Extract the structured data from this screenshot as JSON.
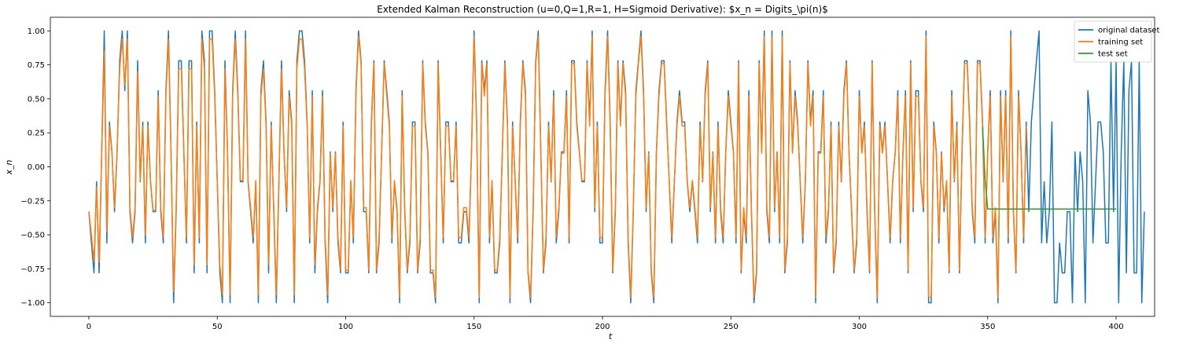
{
  "chart_data": {
    "type": "line",
    "title": "Extended Kalman Reconstruction (u=0,Q=1,R=1, H=Sigmoid Derivative): $x_n = Digits_\\pi(n)$",
    "xlabel": "t",
    "ylabel": "x_n",
    "xlim": [
      -15,
      415
    ],
    "ylim": [
      -1.1,
      1.1
    ],
    "xticks": [
      0,
      50,
      100,
      150,
      200,
      250,
      300,
      350,
      400
    ],
    "yticks": [
      -1.0,
      -0.75,
      -0.5,
      -0.25,
      0.0,
      0.25,
      0.5,
      0.75,
      1.0
    ],
    "ytick_labels": [
      "−1.00",
      "−0.75",
      "−0.50",
      "−0.25",
      "0.00",
      "0.25",
      "0.50",
      "0.75",
      "1.00"
    ],
    "legend_position": "top-right",
    "grid": false,
    "series": [
      {
        "name": "original dataset",
        "color": "#1f77b4",
        "x_start": 0,
        "y": [
          -0.33,
          -0.56,
          -0.78,
          -0.11,
          -0.78,
          0.11,
          1.0,
          -0.56,
          0.33,
          0.11,
          -0.33,
          0.11,
          0.78,
          1.0,
          0.56,
          1.0,
          -0.33,
          -0.56,
          -0.33,
          0.78,
          -0.11,
          0.33,
          -0.56,
          0.33,
          -0.11,
          -0.33,
          -0.33,
          0.56,
          -0.33,
          -0.56,
          0.56,
          1.0,
          0.11,
          -1.0,
          -0.33,
          0.78,
          0.78,
          0.11,
          -0.56,
          0.78,
          0.78,
          -0.78,
          0.33,
          -0.56,
          1.0,
          0.78,
          -0.78,
          1.0,
          1.0,
          0.56,
          -0.11,
          -0.78,
          -1.0,
          0.78,
          0.11,
          -1.0,
          0.56,
          1.0,
          0.56,
          -0.11,
          -0.11,
          1.0,
          -0.11,
          -0.33,
          -0.56,
          -0.11,
          -1.0,
          0.56,
          0.78,
          0.33,
          -0.78,
          0.33,
          -0.33,
          -1.0,
          -0.11,
          0.78,
          0.11,
          -0.33,
          0.56,
          0.33,
          -1.0,
          0.78,
          1.0,
          1.0,
          0.78,
          0.33,
          -0.56,
          0.56,
          -0.78,
          -0.33,
          -0.11,
          0.56,
          -0.56,
          -1.0,
          0.11,
          -0.33,
          0.11,
          -0.56,
          -0.78,
          0.33,
          -0.78,
          -0.78,
          -0.11,
          -0.56,
          0.56,
          1.0,
          0.78,
          -0.33,
          -0.33,
          -0.78,
          0.33,
          0.78,
          -0.78,
          -0.56,
          0.11,
          0.78,
          0.56,
          0.33,
          -0.56,
          -0.11,
          -0.33,
          -1.0,
          0.56,
          -0.33,
          -0.78,
          -0.56,
          0.33,
          0.33,
          -0.78,
          -0.56,
          0.78,
          0.33,
          0.11,
          -0.78,
          -0.78,
          -1.0,
          0.78,
          0.11,
          -0.56,
          0.33,
          0.33,
          -0.11,
          -0.11,
          0.33,
          -0.56,
          -0.56,
          -0.33,
          -0.33,
          -0.56,
          0.11,
          1.0,
          0.33,
          -1.0,
          0.78,
          0.56,
          0.78,
          -0.56,
          -0.11,
          -0.78,
          -0.78,
          -0.56,
          0.11,
          0.78,
          0.33,
          -1.0,
          0.33,
          -0.11,
          -0.56,
          0.33,
          0.78,
          0.56,
          -0.78,
          -1.0,
          -0.33,
          0.78,
          1.0,
          0.11,
          -0.78,
          -0.56,
          0.33,
          -0.11,
          0.56,
          -0.56,
          -0.33,
          0.11,
          0.11,
          0.56,
          -0.56,
          0.78,
          0.78,
          0.33,
          0.11,
          -0.11,
          -0.11,
          0.78,
          0.33,
          1.0,
          -0.33,
          0.33,
          -0.56,
          -0.56,
          0.56,
          1.0,
          0.33,
          -0.78,
          -0.33,
          0.78,
          0.33,
          0.78,
          0.56,
          -0.56,
          -1.0,
          -0.33,
          0.56,
          0.78,
          1.0,
          0.56,
          -0.33,
          0.11,
          -0.78,
          -1.0,
          0.11,
          0.56,
          0.78,
          0.78,
          0.33,
          -0.11,
          -0.56,
          -0.11,
          0.33,
          0.56,
          0.33,
          0.33,
          -0.11,
          -0.33,
          -0.11,
          -0.33,
          -0.56,
          0.33,
          -0.11,
          0.56,
          0.78,
          -0.33,
          0.11,
          -0.56,
          0.33,
          -0.33,
          -0.56,
          0.11,
          0.56,
          0.33,
          0.11,
          -0.56,
          0.78,
          -0.78,
          -0.33,
          -0.56,
          0.56,
          -0.33,
          -1.0,
          -0.78,
          0.78,
          0.11,
          1.0,
          -0.33,
          -0.56,
          1.0,
          -0.33,
          0.11,
          -0.56,
          1.0,
          -0.78,
          -0.56,
          0.78,
          0.11,
          0.56,
          0.33,
          -0.11,
          -0.56,
          -0.11,
          0.78,
          0.33,
          0.56,
          -1.0,
          0.11,
          0.11,
          0.56,
          -0.56,
          -0.33,
          0.33,
          -0.78,
          -0.56,
          0.33,
          -0.11,
          0.56,
          0.78,
          0.11,
          -0.33,
          -0.78,
          -0.56,
          0.56,
          0.11,
          0.33,
          -0.33,
          -0.78,
          0.78,
          -0.33,
          -1.0,
          0.33,
          0.11,
          0.33,
          -0.11,
          -0.56,
          -0.11,
          0.11,
          0.56,
          -0.56,
          0.11,
          0.56,
          -0.78,
          0.78,
          -0.33,
          0.56,
          0.56,
          -0.11,
          -0.33,
          1.0,
          -1.0,
          -1.0,
          0.33,
          0.11,
          -0.56,
          0.11,
          -0.33,
          -0.11,
          -0.78,
          0.56,
          -0.11,
          0.33,
          -0.78,
          0.11,
          0.78,
          0.78,
          0.33,
          -0.33,
          -0.56,
          0.78,
          0.78,
          0.33,
          -0.56,
          0.11,
          0.56,
          -0.56,
          -0.33,
          -1.0,
          0.56,
          -0.11,
          0.56,
          -0.56,
          1.0,
          -0.33,
          -0.78,
          0.56,
          0.11,
          -0.56,
          0.33,
          -0.33,
          0.33,
          0.56,
          0.78,
          1.0,
          -0.56,
          -0.11,
          -0.56,
          -0.33,
          0.33,
          -1.0,
          -1.0,
          -0.56,
          -0.78,
          -0.78,
          -0.33,
          -0.33,
          -1.0,
          0.11,
          -0.33,
          0.11,
          -0.11,
          -1.0,
          0.56,
          0.33,
          -0.56,
          -0.11,
          0.33,
          0.33,
          0.11,
          -0.56,
          -0.56,
          0.78,
          -0.33,
          0.78,
          -1.0,
          0.11,
          0.78,
          -0.78,
          0.56,
          0.78,
          -0.78,
          -0.78,
          0.78,
          -1.0,
          -0.33
        ]
      },
      {
        "name": "training set",
        "color": "#ff7f0e",
        "x_start": 0,
        "y": [
          -0.33,
          -0.5,
          -0.7,
          -0.15,
          -0.7,
          0.1,
          0.85,
          -0.48,
          0.3,
          0.1,
          -0.3,
          0.12,
          0.72,
          0.94,
          0.6,
          0.94,
          -0.3,
          -0.52,
          -0.3,
          0.7,
          -0.1,
          0.3,
          -0.5,
          0.3,
          -0.1,
          -0.32,
          -0.32,
          0.52,
          -0.3,
          -0.52,
          0.52,
          0.94,
          0.1,
          -0.92,
          -0.3,
          0.72,
          0.72,
          0.1,
          -0.52,
          0.72,
          0.72,
          -0.72,
          0.3,
          -0.52,
          0.94,
          0.72,
          -0.72,
          0.94,
          0.94,
          0.52,
          -0.1,
          -0.72,
          -0.94,
          0.72,
          0.1,
          -0.94,
          0.52,
          0.94,
          0.52,
          -0.1,
          -0.1,
          0.94,
          -0.1,
          -0.3,
          -0.52,
          -0.1,
          -0.94,
          0.52,
          0.72,
          0.3,
          -0.72,
          0.3,
          -0.3,
          -0.94,
          -0.1,
          0.72,
          0.1,
          -0.3,
          0.52,
          0.3,
          -0.94,
          0.72,
          0.94,
          0.94,
          0.72,
          0.3,
          -0.52,
          0.52,
          -0.72,
          -0.3,
          -0.1,
          0.52,
          -0.52,
          -0.94,
          0.1,
          -0.3,
          0.1,
          -0.52,
          -0.76,
          0.3,
          -0.76,
          -0.76,
          -0.1,
          -0.52,
          0.52,
          0.96,
          0.76,
          -0.3,
          -0.3,
          -0.76,
          0.3,
          0.76,
          -0.76,
          -0.52,
          0.1,
          0.76,
          0.52,
          0.3,
          -0.52,
          -0.1,
          -0.3,
          -0.96,
          0.52,
          -0.3,
          -0.76,
          -0.52,
          0.3,
          0.3,
          -0.76,
          -0.52,
          0.76,
          0.3,
          0.1,
          -0.76,
          -0.76,
          -0.96,
          0.76,
          0.1,
          -0.52,
          0.3,
          0.3,
          -0.1,
          -0.1,
          0.3,
          -0.52,
          -0.52,
          -0.3,
          -0.3,
          -0.52,
          0.1,
          0.96,
          0.3,
          -0.96,
          0.76,
          0.52,
          0.76,
          -0.52,
          -0.1,
          -0.76,
          -0.76,
          -0.52,
          0.1,
          0.76,
          0.3,
          -0.96,
          0.3,
          -0.1,
          -0.52,
          0.3,
          0.76,
          0.52,
          -0.76,
          -0.96,
          -0.3,
          0.76,
          0.96,
          0.1,
          -0.76,
          -0.52,
          0.3,
          -0.1,
          0.52,
          -0.52,
          -0.3,
          0.1,
          0.1,
          0.52,
          -0.52,
          0.76,
          0.76,
          0.3,
          0.1,
          -0.1,
          -0.1,
          0.76,
          0.3,
          0.96,
          -0.3,
          0.3,
          -0.52,
          -0.52,
          0.52,
          0.96,
          0.3,
          -0.76,
          -0.3,
          0.76,
          0.3,
          0.76,
          0.52,
          -0.52,
          -0.96,
          -0.3,
          0.52,
          0.76,
          0.96,
          0.52,
          -0.3,
          0.1,
          -0.76,
          -0.96,
          0.1,
          0.52,
          0.76,
          0.76,
          0.3,
          -0.1,
          -0.52,
          -0.1,
          0.3,
          0.52,
          0.3,
          0.3,
          -0.1,
          -0.3,
          -0.1,
          -0.3,
          -0.52,
          0.3,
          -0.1,
          0.52,
          0.76,
          -0.3,
          0.1,
          -0.52,
          0.3,
          -0.3,
          -0.52,
          0.1,
          0.52,
          0.3,
          0.1,
          -0.52,
          0.76,
          -0.76,
          -0.3,
          -0.52,
          0.52,
          -0.3,
          -0.96,
          -0.76,
          0.76,
          0.1,
          0.96,
          -0.3,
          -0.52,
          0.96,
          -0.3,
          0.1,
          -0.52,
          0.96,
          -0.76,
          -0.52,
          0.76,
          0.1,
          0.52,
          0.3,
          -0.1,
          -0.52,
          -0.1,
          0.76,
          0.3,
          0.52,
          -0.96,
          0.1,
          0.1,
          0.52,
          -0.52,
          -0.3,
          0.3,
          -0.76,
          -0.52,
          0.3,
          -0.1,
          0.52,
          0.76,
          0.1,
          -0.3,
          -0.76,
          -0.52,
          0.52,
          0.1,
          0.3,
          -0.3,
          -0.76,
          0.76,
          -0.3,
          -0.96,
          0.3,
          0.1,
          0.3,
          -0.1,
          -0.52,
          -0.1,
          0.1,
          0.52,
          -0.52,
          0.1,
          0.52,
          -0.76,
          0.76,
          -0.3,
          0.52,
          0.52,
          -0.1,
          -0.3,
          0.96,
          -0.96,
          -0.96,
          0.3,
          0.1,
          -0.52,
          0.1,
          -0.3,
          -0.1,
          -0.76,
          0.52,
          -0.1,
          0.3,
          -0.76,
          0.1,
          0.76,
          0.76,
          0.3,
          -0.3,
          -0.52,
          0.76,
          0.76,
          0.3,
          -0.52,
          0.1,
          0.52,
          -0.52,
          -0.3,
          -0.96,
          0.52,
          -0.1,
          0.52,
          -0.52,
          0.96,
          -0.3,
          -0.76,
          0.52,
          0.1,
          -0.52,
          0.3
        ]
      },
      {
        "name": "test set",
        "color": "#2ca02c",
        "x": [
          348,
          349,
          350,
          400
        ],
        "y": [
          0.3,
          -0.1,
          -0.31,
          -0.31
        ]
      }
    ]
  }
}
